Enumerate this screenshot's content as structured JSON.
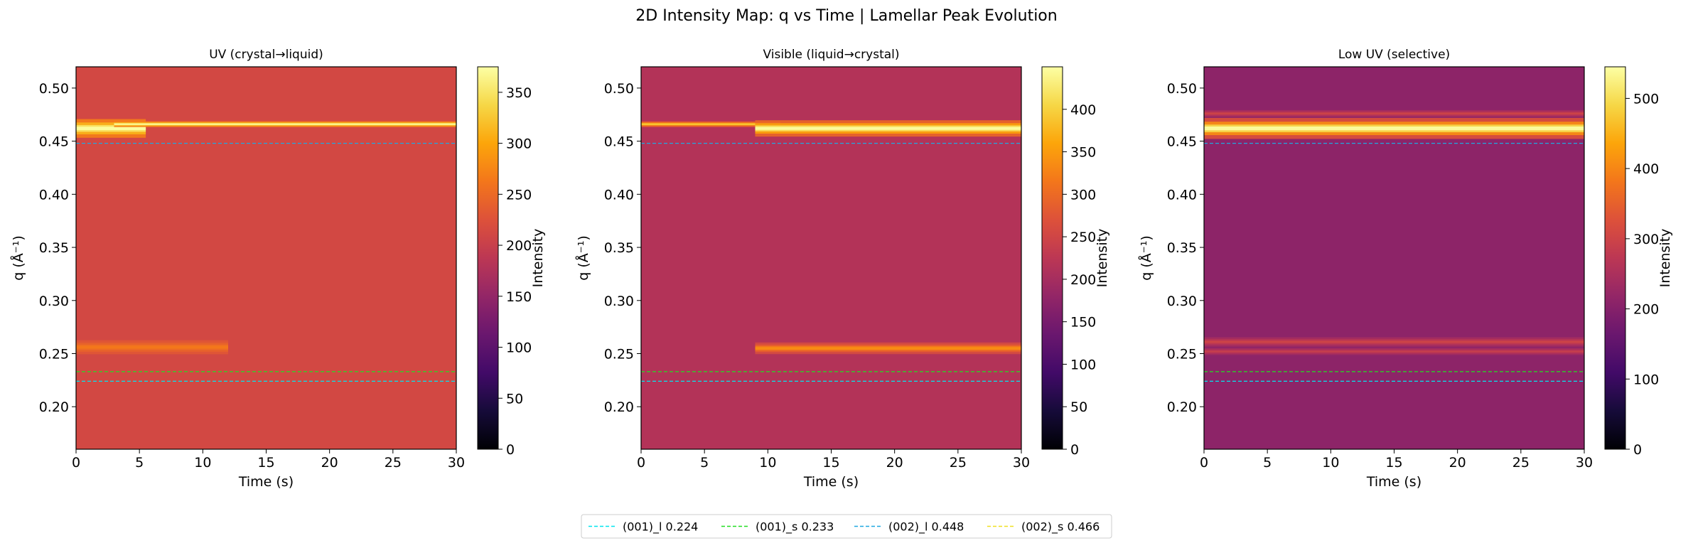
{
  "figure_title": "2D Intensity Map: q vs Time | Lamellar Peak Evolution",
  "legend": [
    {
      "label": "(001)_l 0.224",
      "q": 0.224,
      "color": "#00e5ee"
    },
    {
      "label": "(001)_s 0.233",
      "q": 0.233,
      "color": "#22dd22"
    },
    {
      "label": "(002)_l 0.448",
      "q": 0.448,
      "color": "#1fa8e0"
    },
    {
      "label": "(002)_s 0.466",
      "q": 0.466,
      "color": "#f0e020"
    }
  ],
  "chart_data": [
    {
      "type": "heatmap",
      "title": "UV (crystal→liquid)",
      "xlabel": "Time (s)",
      "ylabel": "q (Å⁻¹)",
      "xlim": [
        0,
        30
      ],
      "ylim": [
        0.16,
        0.52
      ],
      "xticks": [
        "0",
        "5",
        "10",
        "15",
        "20",
        "25",
        "30"
      ],
      "yticks": [
        "0.20",
        "0.25",
        "0.30",
        "0.35",
        "0.40",
        "0.45",
        "0.50"
      ],
      "colorbar_label": "Intensity",
      "colorbar_range": [
        0,
        375
      ],
      "colorbar_ticks": [
        "0",
        "50",
        "100",
        "150",
        "200",
        "250",
        "300",
        "350"
      ],
      "colormap": "inferno",
      "background_intensity": 212,
      "reference_lines": [
        0.224,
        0.233,
        0.448
      ],
      "bands": [
        {
          "q": 0.462,
          "width": 0.008,
          "t_start": 0,
          "t_end": 5.5,
          "peak": 375
        },
        {
          "q": 0.466,
          "width": 0.0025,
          "t_start": 3,
          "t_end": 30,
          "peak": 375
        },
        {
          "q": 0.256,
          "width": 0.006,
          "t_start": 0,
          "t_end": 12,
          "peak": 265
        }
      ]
    },
    {
      "type": "heatmap",
      "title": "Visible (liquid→crystal)",
      "xlabel": "Time (s)",
      "ylabel": "q (Å⁻¹)",
      "xlim": [
        0,
        30
      ],
      "ylim": [
        0.16,
        0.52
      ],
      "xticks": [
        "0",
        "5",
        "10",
        "15",
        "20",
        "25",
        "30"
      ],
      "yticks": [
        "0.20",
        "0.25",
        "0.30",
        "0.35",
        "0.40",
        "0.45",
        "0.50"
      ],
      "colorbar_label": "Intensity",
      "colorbar_range": [
        0,
        450
      ],
      "colorbar_ticks": [
        "0",
        "50",
        "100",
        "150",
        "200",
        "250",
        "300",
        "350",
        "400"
      ],
      "colormap": "inferno",
      "background_intensity": 215,
      "reference_lines": [
        0.224,
        0.233,
        0.448
      ],
      "bands": [
        {
          "q": 0.466,
          "width": 0.0025,
          "t_start": 0,
          "t_end": 11,
          "peak": 400
        },
        {
          "q": 0.462,
          "width": 0.007,
          "t_start": 9,
          "t_end": 30,
          "peak": 450
        },
        {
          "q": 0.255,
          "width": 0.005,
          "t_start": 9,
          "t_end": 30,
          "peak": 340
        }
      ]
    },
    {
      "type": "heatmap",
      "title": "Low UV (selective)",
      "xlabel": "Time (s)",
      "ylabel": "q (Å⁻¹)",
      "xlim": [
        0,
        30
      ],
      "ylim": [
        0.16,
        0.52
      ],
      "xticks": [
        "0",
        "5",
        "10",
        "15",
        "20",
        "25",
        "30"
      ],
      "yticks": [
        "0.20",
        "0.25",
        "0.30",
        "0.35",
        "0.40",
        "0.45",
        "0.50"
      ],
      "colorbar_label": "Intensity",
      "colorbar_range": [
        0,
        545
      ],
      "colorbar_ticks": [
        "0",
        "100",
        "200",
        "300",
        "400",
        "500"
      ],
      "colormap": "inferno",
      "background_intensity": 210,
      "reference_lines": [
        0.224,
        0.233,
        0.448
      ],
      "bands": [
        {
          "q": 0.462,
          "width": 0.009,
          "t_start": 0,
          "t_end": 30,
          "peak": 545
        },
        {
          "q": 0.476,
          "width": 0.003,
          "t_start": 0,
          "t_end": 30,
          "peak": 300
        },
        {
          "q": 0.261,
          "width": 0.004,
          "t_start": 0,
          "t_end": 30,
          "peak": 300
        },
        {
          "q": 0.252,
          "width": 0.003,
          "t_start": 0,
          "t_end": 30,
          "peak": 290
        }
      ]
    }
  ]
}
